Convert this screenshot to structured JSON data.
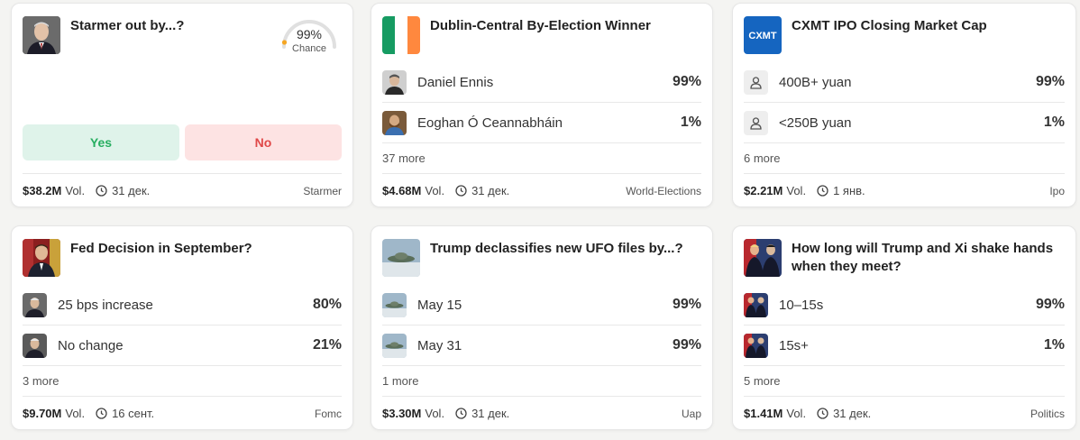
{
  "cards": [
    {
      "title": "Starmer out by...?",
      "gauge": {
        "value": "99%",
        "label": "Chance",
        "fraction": 0.99
      },
      "yes_label": "Yes",
      "no_label": "No",
      "volume": "$38.2M",
      "vol_label": "Vol.",
      "date": "31 дек.",
      "tag": "Starmer"
    },
    {
      "title": "Dublin-Central By-Election Winner",
      "outcomes": [
        {
          "label": "Daniel Ennis",
          "pct": "99%"
        },
        {
          "label": "Eoghan Ó Ceannabháin",
          "pct": "1%"
        }
      ],
      "more": "37 more",
      "volume": "$4.68M",
      "vol_label": "Vol.",
      "date": "31 дек.",
      "tag": "World-Elections"
    },
    {
      "title": "CXMT IPO Closing Market Cap",
      "logo_text": "CXMT",
      "outcomes": [
        {
          "label": "400B+ yuan",
          "pct": "99%"
        },
        {
          "label": "<250B yuan",
          "pct": "1%"
        }
      ],
      "more": "6 more",
      "volume": "$2.21M",
      "vol_label": "Vol.",
      "date": "1 янв.",
      "tag": "Ipo"
    },
    {
      "title": "Fed Decision in September?",
      "outcomes": [
        {
          "label": "25 bps increase",
          "pct": "80%"
        },
        {
          "label": "No change",
          "pct": "21%"
        }
      ],
      "more": "3 more",
      "volume": "$9.70M",
      "vol_label": "Vol.",
      "date": "16 сент.",
      "tag": "Fomc"
    },
    {
      "title": "Trump declassifies new UFO files by...?",
      "outcomes": [
        {
          "label": "May 15",
          "pct": "99%"
        },
        {
          "label": "May 31",
          "pct": "99%"
        }
      ],
      "more": "1 more",
      "volume": "$3.30M",
      "vol_label": "Vol.",
      "date": "31 дек.",
      "tag": "Uap"
    },
    {
      "title": "How long will Trump and Xi shake hands when they meet?",
      "outcomes": [
        {
          "label": "10–15s",
          "pct": "99%"
        },
        {
          "label": "15s+",
          "pct": "1%"
        }
      ],
      "more": "5 more",
      "volume": "$1.41M",
      "vol_label": "Vol.",
      "date": "31 дек.",
      "tag": "Politics"
    }
  ],
  "colors": {
    "yes_bg": "#dff3ea",
    "yes_text": "#27ae60",
    "no_bg": "#fde3e3",
    "no_text": "#e04848",
    "gauge_track": "#e0e0e0",
    "gauge_dot": "#f5a623",
    "cxmt_blue": "#1565c0"
  }
}
